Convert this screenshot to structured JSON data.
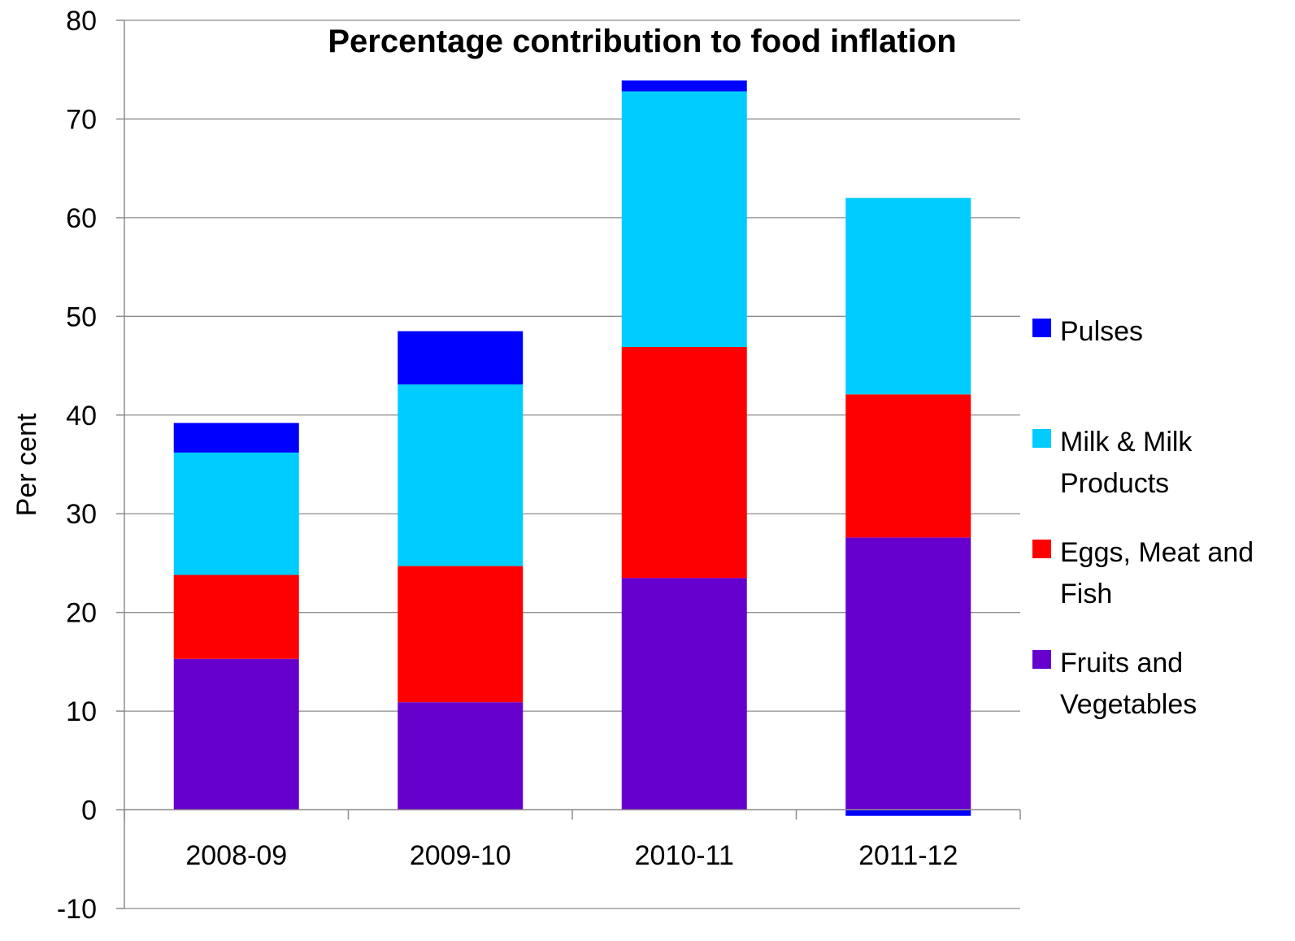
{
  "chart_data": {
    "type": "bar",
    "stacked": true,
    "title": "Percentage contribution to food inflation",
    "xlabel": "",
    "ylabel": "Per cent",
    "ylim": [
      -10,
      80
    ],
    "yticks": [
      -10,
      0,
      10,
      20,
      30,
      40,
      50,
      60,
      70,
      80
    ],
    "grid": true,
    "legend_position": "right",
    "categories": [
      "2008-09",
      "2009-10",
      "2010-11",
      "2011-12"
    ],
    "series": [
      {
        "name": "Fruits and Vegetables",
        "color": "#6600CC",
        "values": [
          15.3,
          10.9,
          23.5,
          27.6
        ]
      },
      {
        "name": "Eggs, Meat and Fish",
        "color": "#FF0000",
        "values": [
          8.5,
          13.8,
          23.4,
          14.5
        ]
      },
      {
        "name": "Milk & Milk Products",
        "color": "#00CCFF",
        "values": [
          12.4,
          18.4,
          25.9,
          19.9
        ]
      },
      {
        "name": "Pulses",
        "color": "#0000FF",
        "values": [
          3.0,
          5.4,
          1.1,
          -0.6
        ]
      }
    ],
    "legend": [
      {
        "lines": [
          "Pulses"
        ],
        "color": "#0000FF"
      },
      {
        "lines": [
          "Milk & Milk",
          "Products"
        ],
        "color": "#00CCFF"
      },
      {
        "lines": [
          "Eggs, Meat and",
          "Fish"
        ],
        "color": "#FF0000"
      },
      {
        "lines": [
          "Fruits and",
          "Vegetables"
        ],
        "color": "#6600CC"
      }
    ]
  }
}
